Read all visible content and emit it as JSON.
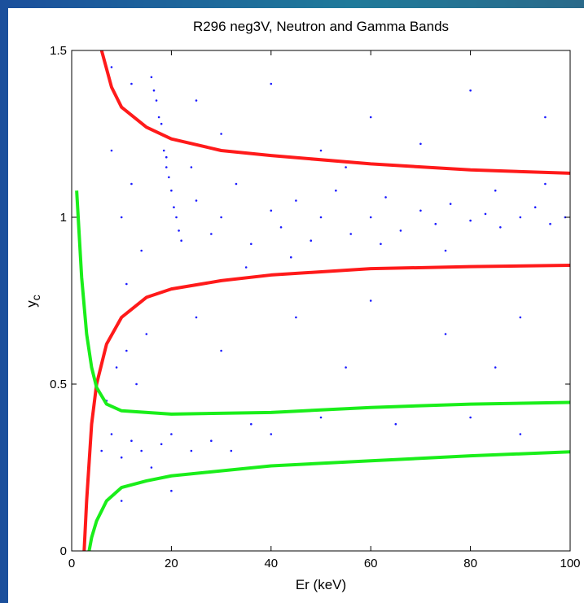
{
  "chart_data": {
    "type": "scatter",
    "title": "R296 neg3V, Neutron and Gamma Bands",
    "xlabel": "Er (keV)",
    "ylabel": "y",
    "ylabel_subscript": "c",
    "xlim": [
      0,
      100
    ],
    "ylim": [
      0,
      1.5
    ],
    "xticks": [
      0,
      20,
      40,
      60,
      80,
      100
    ],
    "yticks": [
      0,
      0.5,
      1,
      1.5
    ],
    "series": [
      {
        "type": "scatter",
        "color": "#1a1aff",
        "x": [
          16,
          17,
          17.5,
          18,
          18.5,
          19,
          19.5,
          20,
          20.5,
          21,
          16.5,
          18,
          19,
          21.5,
          22,
          10,
          12,
          14,
          25,
          28,
          30,
          33,
          36,
          40,
          42,
          45,
          48,
          50,
          53,
          56,
          60,
          63,
          66,
          70,
          73,
          76,
          80,
          83,
          86,
          90,
          93,
          96,
          99,
          8,
          11,
          24,
          35,
          55,
          75,
          95,
          44,
          62,
          85,
          6,
          8,
          10,
          12,
          14,
          16,
          18,
          20,
          24,
          28,
          32,
          36,
          7,
          9,
          11,
          13,
          15,
          25,
          30,
          40,
          50,
          65,
          80,
          90,
          8,
          12,
          25,
          40,
          60,
          80,
          95,
          30,
          50,
          70,
          45,
          60,
          75,
          90,
          10,
          20,
          55,
          85
        ],
        "values": [
          1.42,
          1.35,
          1.3,
          1.25,
          1.2,
          1.15,
          1.12,
          1.08,
          1.03,
          1.0,
          1.38,
          1.28,
          1.18,
          0.96,
          0.93,
          1.0,
          1.1,
          0.9,
          1.05,
          0.95,
          1.0,
          1.1,
          0.92,
          1.02,
          0.97,
          1.05,
          0.93,
          1.0,
          1.08,
          0.95,
          1.0,
          1.06,
          0.96,
          1.02,
          0.98,
          1.04,
          0.99,
          1.01,
          0.97,
          1.0,
          1.03,
          0.98,
          1.0,
          1.2,
          0.8,
          1.15,
          0.85,
          1.15,
          0.9,
          1.1,
          0.88,
          0.92,
          1.08,
          0.3,
          0.35,
          0.28,
          0.33,
          0.3,
          0.25,
          0.32,
          0.35,
          0.3,
          0.33,
          0.3,
          0.38,
          0.45,
          0.55,
          0.6,
          0.5,
          0.65,
          0.7,
          0.6,
          0.35,
          0.4,
          0.38,
          0.4,
          0.35,
          1.45,
          1.4,
          1.35,
          1.4,
          1.3,
          1.38,
          1.3,
          1.25,
          1.2,
          1.22,
          0.7,
          0.75,
          0.65,
          0.7,
          0.15,
          0.18,
          0.55,
          0.55
        ]
      },
      {
        "type": "line",
        "color": "#ff1a1a",
        "x": [
          6,
          8,
          10,
          15,
          20,
          30,
          40,
          60,
          80,
          100
        ],
        "values": [
          1.5,
          1.39,
          1.33,
          1.27,
          1.235,
          1.2,
          1.185,
          1.16,
          1.142,
          1.132
        ]
      },
      {
        "type": "line",
        "color": "#ff1a1a",
        "x": [
          2.5,
          3,
          4,
          5,
          7,
          10,
          15,
          20,
          30,
          40,
          60,
          80,
          100
        ],
        "values": [
          0,
          0.15,
          0.38,
          0.5,
          0.62,
          0.7,
          0.76,
          0.785,
          0.81,
          0.827,
          0.846,
          0.852,
          0.856
        ]
      },
      {
        "type": "line",
        "color": "#1aee1a",
        "x": [
          1,
          1.5,
          2,
          3,
          4,
          5,
          7,
          10,
          20,
          40,
          60,
          80,
          100
        ],
        "values": [
          1.08,
          0.95,
          0.82,
          0.65,
          0.55,
          0.49,
          0.44,
          0.42,
          0.41,
          0.415,
          0.43,
          0.44,
          0.445
        ]
      },
      {
        "type": "line",
        "color": "#1aee1a",
        "x": [
          3.5,
          4,
          5,
          7,
          10,
          15,
          20,
          40,
          60,
          80,
          100
        ],
        "values": [
          0,
          0.04,
          0.09,
          0.15,
          0.19,
          0.21,
          0.225,
          0.255,
          0.27,
          0.285,
          0.297
        ]
      }
    ]
  }
}
